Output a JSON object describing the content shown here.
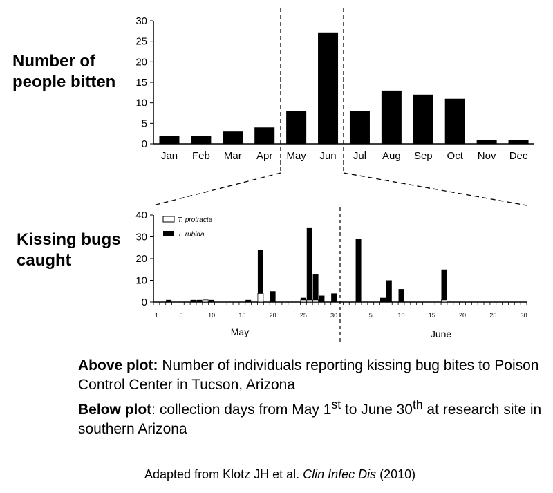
{
  "chart_data": [
    {
      "type": "bar",
      "ylabel": "Number of people bitten",
      "categories": [
        "Jan",
        "Feb",
        "Mar",
        "Apr",
        "May",
        "Jun",
        "Jul",
        "Aug",
        "Sep",
        "Oct",
        "Nov",
        "Dec"
      ],
      "values": [
        2,
        2,
        3,
        4,
        8,
        27,
        8,
        13,
        12,
        11,
        1,
        1
      ],
      "ylim": [
        0,
        30
      ],
      "yticks": [
        "0",
        "5",
        "10",
        "15",
        "20",
        "25",
        "30"
      ],
      "bar_color": "#000000",
      "grid": false
    },
    {
      "type": "bar",
      "ylabel": "Kissing bugs caught",
      "ylim": [
        0,
        40
      ],
      "yticks": [
        "0",
        "10",
        "20",
        "30",
        "40"
      ],
      "period_labels": [
        "May",
        "June"
      ],
      "legend": {
        "placement": "top-left",
        "entries": [
          "T. protracta",
          "T. rubida"
        ]
      },
      "x_tick_labels": [
        "1",
        "5",
        "10",
        "15",
        "20",
        "25",
        "30",
        "5",
        "10",
        "15",
        "20",
        "25",
        "30"
      ],
      "series": [
        {
          "name": "T. protracta",
          "color": "#ffffff",
          "points": [
            {
              "day": "May 9",
              "value": 1
            },
            {
              "day": "May 18",
              "value": 4
            },
            {
              "day": "May 25",
              "value": 1
            },
            {
              "day": "May 26",
              "value": 1
            },
            {
              "day": "May 27",
              "value": 1
            },
            {
              "day": "June 17",
              "value": 1
            }
          ]
        },
        {
          "name": "T. rubida",
          "color": "#000000",
          "points": [
            {
              "day": "May 3",
              "value": 1
            },
            {
              "day": "May 7",
              "value": 1
            },
            {
              "day": "May 8",
              "value": 1
            },
            {
              "day": "May 10",
              "value": 1
            },
            {
              "day": "May 16",
              "value": 1
            },
            {
              "day": "May 18",
              "value": 20
            },
            {
              "day": "May 20",
              "value": 5
            },
            {
              "day": "May 25",
              "value": 1
            },
            {
              "day": "May 26",
              "value": 33
            },
            {
              "day": "May 27",
              "value": 12
            },
            {
              "day": "May 28",
              "value": 3
            },
            {
              "day": "May 30",
              "value": 4
            },
            {
              "day": "June 3",
              "value": 29
            },
            {
              "day": "June 7",
              "value": 2
            },
            {
              "day": "June 8",
              "value": 10
            },
            {
              "day": "June 10",
              "value": 6
            },
            {
              "day": "June 17",
              "value": 14
            }
          ]
        }
      ]
    }
  ],
  "caption": {
    "line1_bold": "Above plot:",
    "line1_text": " Number of individuals reporting kissing bug bites to Poison Control Center in Tucson, Arizona",
    "line2_bold": "Below plot",
    "line2_text_a": ": collection days from May 1",
    "line2_sup_a": "st",
    "line2_text_b": " to June 30",
    "line2_sup_b": "th",
    "line2_text_c": " at research site in southern Arizona"
  },
  "source": {
    "prefix": "Adapted from Klotz JH et al. ",
    "journal": "Clin Infec Dis",
    "suffix": " (2010)"
  }
}
